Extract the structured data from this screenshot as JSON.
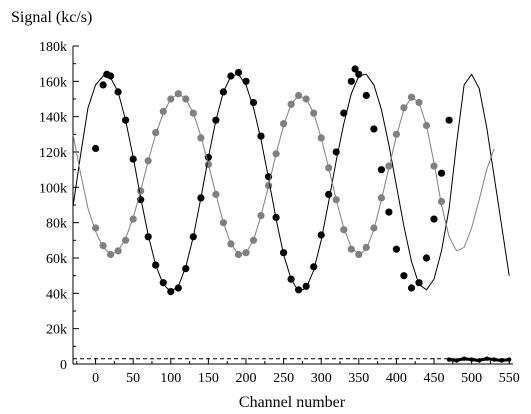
{
  "chart_data": {
    "type": "scatter",
    "ylabel": "Signal (kc/s)",
    "xlabel": "Channel number",
    "xlim": [
      -30,
      555
    ],
    "ylim": [
      0,
      180000
    ],
    "x_ticks": [
      0,
      50,
      100,
      150,
      200,
      250,
      300,
      350,
      400,
      450,
      500,
      550
    ],
    "y_ticks": [
      {
        "value": 0,
        "label": "0"
      },
      {
        "value": 20000,
        "label": "20k"
      },
      {
        "value": 40000,
        "label": "40k"
      },
      {
        "value": 60000,
        "label": "60k"
      },
      {
        "value": 80000,
        "label": "80k"
      },
      {
        "value": 100000,
        "label": "100k"
      },
      {
        "value": 120000,
        "label": "120k"
      },
      {
        "value": 140000,
        "label": "140k"
      },
      {
        "value": 160000,
        "label": "160k"
      },
      {
        "value": 180000,
        "label": "180k"
      }
    ],
    "grid": false,
    "series": [
      {
        "style": "points",
        "color": "#000000",
        "points": [
          [
            0,
            122000
          ],
          [
            10,
            158000
          ],
          [
            15,
            164000
          ],
          [
            20,
            163000
          ],
          [
            30,
            154000
          ],
          [
            40,
            138000
          ],
          [
            50,
            116000
          ],
          [
            60,
            93000
          ],
          [
            70,
            72000
          ],
          [
            80,
            56000
          ],
          [
            90,
            46000
          ],
          [
            100,
            41000
          ],
          [
            110,
            43000
          ],
          [
            120,
            54000
          ],
          [
            130,
            72000
          ],
          [
            140,
            94000
          ],
          [
            150,
            117000
          ],
          [
            160,
            138000
          ],
          [
            170,
            154000
          ],
          [
            180,
            163000
          ],
          [
            190,
            165000
          ],
          [
            200,
            160000
          ],
          [
            210,
            148000
          ],
          [
            220,
            129000
          ],
          [
            230,
            106000
          ],
          [
            240,
            83000
          ],
          [
            250,
            63000
          ],
          [
            260,
            48000
          ],
          [
            270,
            42000
          ],
          [
            280,
            44000
          ],
          [
            290,
            55000
          ],
          [
            300,
            73000
          ],
          [
            310,
            96000
          ],
          [
            320,
            120000
          ],
          [
            330,
            142000
          ],
          [
            340,
            160000
          ],
          [
            345,
            167000
          ],
          [
            350,
            164000
          ],
          [
            360,
            152000
          ],
          [
            370,
            133000
          ],
          [
            380,
            110000
          ],
          [
            390,
            86000
          ],
          [
            400,
            65000
          ],
          [
            410,
            50000
          ],
          [
            420,
            43000
          ],
          [
            430,
            46000
          ],
          [
            440,
            60000
          ],
          [
            450,
            82000
          ],
          [
            460,
            108000
          ],
          [
            470,
            138000
          ]
        ]
      },
      {
        "style": "points",
        "color": "#808080",
        "points": [
          [
            0,
            77000
          ],
          [
            10,
            67000
          ],
          [
            20,
            62000
          ],
          [
            30,
            64000
          ],
          [
            40,
            70000
          ],
          [
            50,
            82000
          ],
          [
            60,
            98000
          ],
          [
            70,
            115000
          ],
          [
            80,
            131000
          ],
          [
            90,
            143000
          ],
          [
            100,
            150000
          ],
          [
            110,
            153000
          ],
          [
            120,
            150000
          ],
          [
            130,
            142000
          ],
          [
            140,
            128000
          ],
          [
            150,
            113000
          ],
          [
            160,
            96000
          ],
          [
            170,
            80000
          ],
          [
            180,
            68000
          ],
          [
            190,
            62000
          ],
          [
            200,
            63000
          ],
          [
            210,
            70000
          ],
          [
            220,
            84000
          ],
          [
            230,
            101000
          ],
          [
            240,
            119000
          ],
          [
            250,
            136000
          ],
          [
            260,
            147000
          ],
          [
            270,
            152000
          ],
          [
            280,
            150000
          ],
          [
            290,
            142000
          ],
          [
            300,
            128000
          ],
          [
            310,
            111000
          ],
          [
            320,
            93000
          ],
          [
            330,
            76000
          ],
          [
            340,
            65000
          ],
          [
            350,
            62000
          ],
          [
            360,
            66000
          ],
          [
            370,
            77000
          ],
          [
            380,
            94000
          ],
          [
            390,
            112000
          ],
          [
            400,
            130000
          ],
          [
            410,
            145000
          ],
          [
            420,
            151000
          ],
          [
            430,
            148000
          ],
          [
            440,
            135000
          ],
          [
            450,
            112000
          ],
          [
            460,
            92000
          ]
        ]
      },
      {
        "style": "line",
        "color": "#000000",
        "points": [
          [
            -30,
            89000
          ],
          [
            -20,
            118000
          ],
          [
            -10,
            145000
          ],
          [
            0,
            158000
          ],
          [
            10,
            163000
          ],
          [
            20,
            162000
          ],
          [
            30,
            154000
          ],
          [
            40,
            138000
          ],
          [
            50,
            117000
          ],
          [
            60,
            94000
          ],
          [
            70,
            73000
          ],
          [
            80,
            56000
          ],
          [
            90,
            45000
          ],
          [
            100,
            41000
          ],
          [
            110,
            44000
          ],
          [
            120,
            55000
          ],
          [
            130,
            72000
          ],
          [
            140,
            94000
          ],
          [
            150,
            117000
          ],
          [
            160,
            138000
          ],
          [
            170,
            154000
          ],
          [
            180,
            163000
          ],
          [
            190,
            164000
          ],
          [
            200,
            158000
          ],
          [
            210,
            145000
          ],
          [
            220,
            127000
          ],
          [
            230,
            105000
          ],
          [
            240,
            82000
          ],
          [
            250,
            62000
          ],
          [
            260,
            48000
          ],
          [
            270,
            41000
          ],
          [
            280,
            43000
          ],
          [
            290,
            53000
          ],
          [
            300,
            70000
          ],
          [
            310,
            92000
          ],
          [
            320,
            115000
          ],
          [
            330,
            136000
          ],
          [
            340,
            153000
          ],
          [
            350,
            163000
          ],
          [
            360,
            164000
          ],
          [
            370,
            158000
          ],
          [
            380,
            144000
          ],
          [
            390,
            124000
          ],
          [
            400,
            101000
          ],
          [
            410,
            78000
          ],
          [
            420,
            58000
          ],
          [
            430,
            45000
          ],
          [
            440,
            42000
          ],
          [
            450,
            48000
          ],
          [
            460,
            64000
          ],
          [
            470,
            88000
          ],
          [
            480,
            125000
          ],
          [
            490,
            158000
          ],
          [
            500,
            164000
          ],
          [
            510,
            156000
          ],
          [
            520,
            134000
          ],
          [
            530,
            106000
          ],
          [
            540,
            78000
          ],
          [
            550,
            50000
          ]
        ]
      },
      {
        "style": "line",
        "color": "#808080",
        "points": [
          [
            -30,
            130000
          ],
          [
            -20,
            108000
          ],
          [
            -10,
            88000
          ],
          [
            0,
            75000
          ],
          [
            10,
            66000
          ],
          [
            20,
            62000
          ],
          [
            30,
            64000
          ],
          [
            40,
            71000
          ],
          [
            50,
            83000
          ],
          [
            60,
            98000
          ],
          [
            70,
            115000
          ],
          [
            80,
            130000
          ],
          [
            90,
            142000
          ],
          [
            100,
            150000
          ],
          [
            110,
            153000
          ],
          [
            120,
            150000
          ],
          [
            130,
            142000
          ],
          [
            140,
            129000
          ],
          [
            150,
            113000
          ],
          [
            160,
            96000
          ],
          [
            170,
            80000
          ],
          [
            180,
            68000
          ],
          [
            190,
            62000
          ],
          [
            200,
            63000
          ],
          [
            210,
            70000
          ],
          [
            220,
            84000
          ],
          [
            230,
            101000
          ],
          [
            240,
            119000
          ],
          [
            250,
            135000
          ],
          [
            260,
            147000
          ],
          [
            270,
            152000
          ],
          [
            280,
            150000
          ],
          [
            290,
            142000
          ],
          [
            300,
            128000
          ],
          [
            310,
            111000
          ],
          [
            320,
            93000
          ],
          [
            330,
            77000
          ],
          [
            340,
            66000
          ],
          [
            350,
            62000
          ],
          [
            360,
            65000
          ],
          [
            370,
            76000
          ],
          [
            380,
            93000
          ],
          [
            390,
            111000
          ],
          [
            400,
            129000
          ],
          [
            410,
            144000
          ],
          [
            420,
            151000
          ],
          [
            430,
            148000
          ],
          [
            440,
            135000
          ],
          [
            450,
            114000
          ],
          [
            460,
            90000
          ],
          [
            470,
            72000
          ],
          [
            480,
            64000
          ],
          [
            490,
            66000
          ],
          [
            500,
            77000
          ],
          [
            510,
            93000
          ],
          [
            520,
            110000
          ],
          [
            530,
            122000
          ]
        ]
      },
      {
        "style": "points-small",
        "color": "#000000",
        "points": [
          [
            470,
            2500
          ],
          [
            480,
            2000
          ],
          [
            490,
            3000
          ],
          [
            500,
            2500
          ],
          [
            510,
            2000
          ],
          [
            520,
            3000
          ],
          [
            530,
            2500
          ],
          [
            540,
            2000
          ],
          [
            550,
            2500
          ]
        ]
      },
      {
        "style": "dashed",
        "color": "#000000",
        "points": [
          [
            -30,
            3000
          ],
          [
            555,
            3000
          ]
        ]
      }
    ]
  }
}
